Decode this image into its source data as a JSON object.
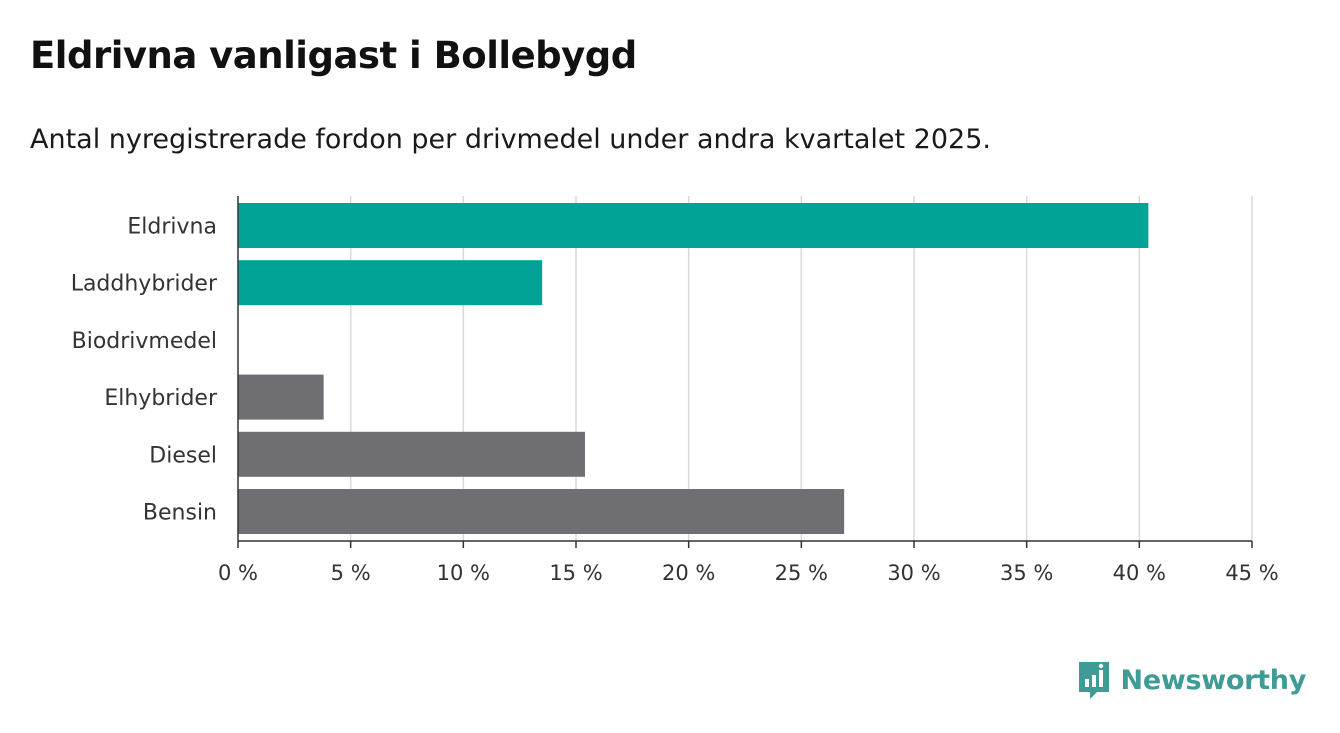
{
  "header": {
    "title": "Eldrivna vanligast i Bollebygd",
    "subtitle": "Antal nyregistrerade fordon per drivmedel under andra kvartalet 2025."
  },
  "brand": {
    "name": "Newsworthy",
    "icon": "newsworthy-logo-icon",
    "color": "#3f9b95"
  },
  "colors": {
    "highlight": "#00a396",
    "default": "#6e6e73",
    "grid": "#d9d9d9",
    "axis": "#333333"
  },
  "chart_data": {
    "type": "bar",
    "orientation": "horizontal",
    "categories": [
      "Eldrivna",
      "Laddhybrider",
      "Biodrivmedel",
      "Elhybrider",
      "Diesel",
      "Bensin"
    ],
    "values": [
      40.4,
      13.5,
      0,
      3.8,
      15.4,
      26.9
    ],
    "highlight": [
      true,
      true,
      true,
      false,
      false,
      false
    ],
    "unit": "%",
    "xlim": [
      0,
      45
    ],
    "ticks": [
      0,
      5,
      10,
      15,
      20,
      25,
      30,
      35,
      40,
      45
    ],
    "tick_labels": [
      "0 %",
      "5 %",
      "10 %",
      "15 %",
      "20 %",
      "25 %",
      "30 %",
      "35 %",
      "40 %",
      "45 %"
    ],
    "grid": true
  }
}
